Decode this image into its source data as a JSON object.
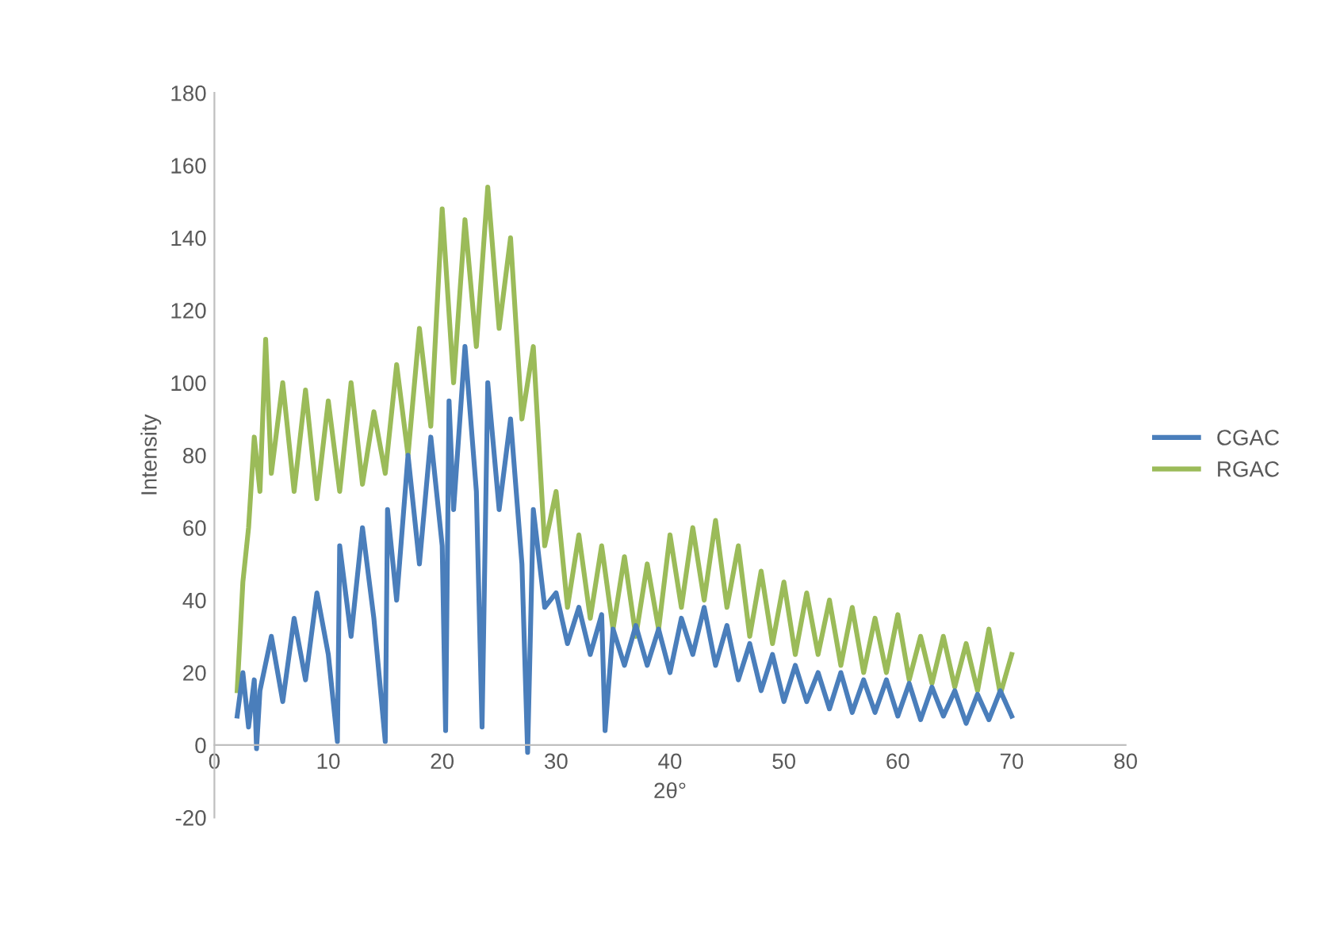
{
  "chart_data": {
    "type": "line",
    "xlabel": "2θ°",
    "ylabel": "Intensity",
    "xlim": [
      0,
      80
    ],
    "xticks": [
      0,
      10,
      20,
      30,
      40,
      50,
      60,
      70,
      80
    ],
    "ylim": [
      -20,
      180
    ],
    "yticks": [
      -20,
      0,
      20,
      40,
      60,
      80,
      100,
      120,
      140,
      160,
      180
    ],
    "grid": false,
    "legend": "right",
    "marker": "none",
    "line_style": "solid",
    "series": [
      {
        "name": "RGAC",
        "color": "#9bbb59",
        "x": [
          2,
          2.5,
          3,
          3.5,
          4,
          4.5,
          5,
          6,
          7,
          8,
          9,
          10,
          11,
          12,
          13,
          14,
          15,
          16,
          17,
          18,
          19,
          20,
          21,
          22,
          23,
          24,
          25,
          26,
          27,
          28,
          29,
          30,
          31,
          32,
          33,
          34,
          35,
          36,
          37,
          38,
          39,
          40,
          41,
          42,
          43,
          44,
          45,
          46,
          47,
          48,
          49,
          50,
          51,
          52,
          53,
          54,
          55,
          56,
          57,
          58,
          59,
          60,
          61,
          62,
          63,
          64,
          65,
          66,
          67,
          68,
          69,
          70
        ],
        "values": [
          15,
          45,
          60,
          85,
          70,
          112,
          75,
          100,
          70,
          98,
          68,
          95,
          70,
          100,
          72,
          92,
          75,
          105,
          80,
          115,
          88,
          148,
          100,
          145,
          110,
          154,
          115,
          140,
          90,
          110,
          55,
          70,
          38,
          58,
          35,
          55,
          32,
          52,
          30,
          50,
          32,
          58,
          38,
          60,
          40,
          62,
          38,
          55,
          30,
          48,
          28,
          45,
          25,
          42,
          25,
          40,
          22,
          38,
          20,
          35,
          20,
          36,
          18,
          30,
          17,
          30,
          16,
          28,
          15,
          32,
          14,
          25
        ]
      },
      {
        "name": "CGAC",
        "color": "#4a7ebb",
        "x": [
          2,
          2.5,
          3,
          3.5,
          3.7,
          4,
          5,
          6,
          7,
          8,
          9,
          10,
          10.8,
          11,
          12,
          13,
          14,
          15,
          15.2,
          16,
          17,
          18,
          19,
          20,
          20.3,
          20.6,
          21,
          22,
          23,
          23.5,
          24,
          25,
          26,
          27,
          27.5,
          28,
          29,
          30,
          31,
          32,
          33,
          34,
          34.3,
          35,
          36,
          37,
          38,
          39,
          40,
          41,
          42,
          43,
          44,
          45,
          46,
          47,
          48,
          49,
          50,
          51,
          52,
          53,
          54,
          55,
          56,
          57,
          58,
          59,
          60,
          61,
          62,
          63,
          64,
          65,
          66,
          67,
          68,
          69,
          70
        ],
        "values": [
          8,
          20,
          5,
          18,
          -1,
          15,
          30,
          12,
          35,
          18,
          42,
          25,
          1,
          55,
          30,
          60,
          35,
          1,
          65,
          40,
          80,
          50,
          85,
          55,
          4,
          95,
          65,
          110,
          70,
          5,
          100,
          65,
          90,
          50,
          -2,
          65,
          38,
          42,
          28,
          38,
          25,
          36,
          4,
          32,
          22,
          33,
          22,
          32,
          20,
          35,
          25,
          38,
          22,
          33,
          18,
          28,
          15,
          25,
          12,
          22,
          12,
          20,
          10,
          20,
          9,
          18,
          9,
          18,
          8,
          17,
          7,
          16,
          8,
          15,
          6,
          14,
          7,
          15,
          8
        ]
      }
    ]
  }
}
